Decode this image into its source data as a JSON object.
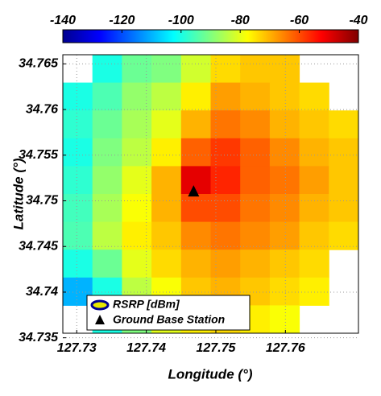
{
  "chart_data": {
    "type": "heatmap",
    "xlabel": "Longitude (°)",
    "ylabel": "Latitude (°)",
    "xlim": [
      127.728,
      127.7705
    ],
    "ylim": [
      34.7355,
      34.766
    ],
    "xticks": [
      127.73,
      127.74,
      127.75,
      127.76
    ],
    "yticks": [
      34.735,
      34.74,
      34.745,
      34.75,
      34.755,
      34.76,
      34.765
    ],
    "grid": true,
    "colormap": "jet",
    "clim": [
      -140,
      -40
    ],
    "cticks": [
      -140,
      -120,
      -100,
      -80,
      -60,
      -40
    ],
    "field_name": "RSRP [dBm]",
    "x": [
      127.7301,
      127.7344,
      127.7386,
      127.7429,
      127.7471,
      127.7514,
      127.7556,
      127.7599,
      127.7641,
      127.7684
    ],
    "y": [
      34.7645,
      34.7614,
      34.7584,
      34.7553,
      34.7523,
      34.7492,
      34.7462,
      34.7431,
      34.7401,
      34.737
    ],
    "z": [
      [
        null,
        -100,
        -92,
        -90,
        -82,
        -74,
        -72,
        -72,
        null,
        null
      ],
      [
        -100,
        -95,
        -88,
        -84,
        -76,
        -68,
        -70,
        -72,
        -74,
        null
      ],
      [
        -98,
        -92,
        -86,
        -80,
        -70,
        -64,
        -66,
        -70,
        -72,
        -74
      ],
      [
        -100,
        -90,
        -84,
        -76,
        -62,
        -58,
        -62,
        -66,
        -70,
        -72
      ],
      [
        -98,
        -88,
        -80,
        -70,
        -50,
        -56,
        -62,
        -64,
        -68,
        -72
      ],
      [
        -96,
        -86,
        -78,
        -70,
        -60,
        -60,
        -64,
        -66,
        -70,
        -72
      ],
      [
        -95,
        -84,
        -76,
        -72,
        -66,
        -64,
        -66,
        -68,
        -72,
        -74
      ],
      [
        -100,
        -92,
        -80,
        -74,
        -70,
        -68,
        -70,
        -72,
        -74,
        null
      ],
      [
        -110,
        -100,
        -84,
        -78,
        -72,
        -70,
        -72,
        -74,
        -76,
        null
      ],
      [
        null,
        -100,
        -90,
        -80,
        -76,
        -74,
        -76,
        -78,
        null,
        null
      ]
    ],
    "series": [
      {
        "name": "Ground Base Station",
        "color": "#000000",
        "x": [
          127.7468
        ],
        "y": [
          34.751
        ]
      }
    ]
  }
}
